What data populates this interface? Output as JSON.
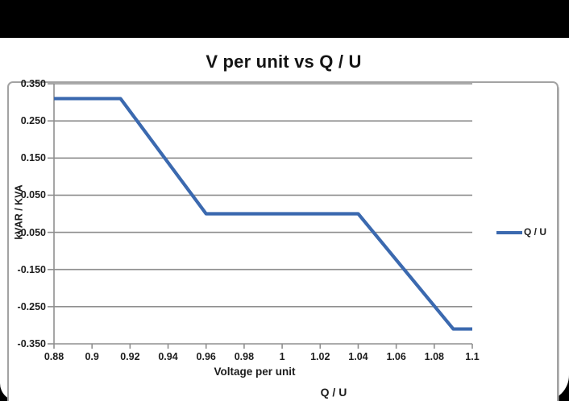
{
  "colors": {
    "background": "#000000",
    "panel": "#ffffff",
    "card_border": "#a3a3a3",
    "grid": "#8f8f8f",
    "axis": "#8f8f8f",
    "series_line": "#3b69af",
    "text": "#1d1d1d"
  },
  "chart_data": {
    "type": "line",
    "title": "V per unit vs Q / U",
    "xlabel": "Voltage per unit",
    "ylabel": "kVAR / KVA",
    "caption": "Q / U",
    "legend_position": "right-middle",
    "grid": "horizontal",
    "xlim": [
      0.88,
      1.1
    ],
    "ylim": [
      -0.35,
      0.35
    ],
    "x_ticks": [
      "0.88",
      "0.9",
      "0.92",
      "0.94",
      "0.96",
      "0.98",
      "1",
      "1.02",
      "1.04",
      "1.06",
      "1.08",
      "1.1"
    ],
    "y_ticks": [
      "0.350",
      "0.250",
      "0.150",
      "0.050",
      "-0.050",
      "-0.150",
      "-0.250",
      "-0.350"
    ],
    "series": [
      {
        "name": "Q / U",
        "color": "#3b69af",
        "points": [
          [
            0.88,
            0.31
          ],
          [
            0.915,
            0.31
          ],
          [
            0.96,
            0.0
          ],
          [
            1.04,
            0.0
          ],
          [
            1.09,
            -0.31
          ],
          [
            1.1,
            -0.31
          ]
        ]
      }
    ]
  }
}
